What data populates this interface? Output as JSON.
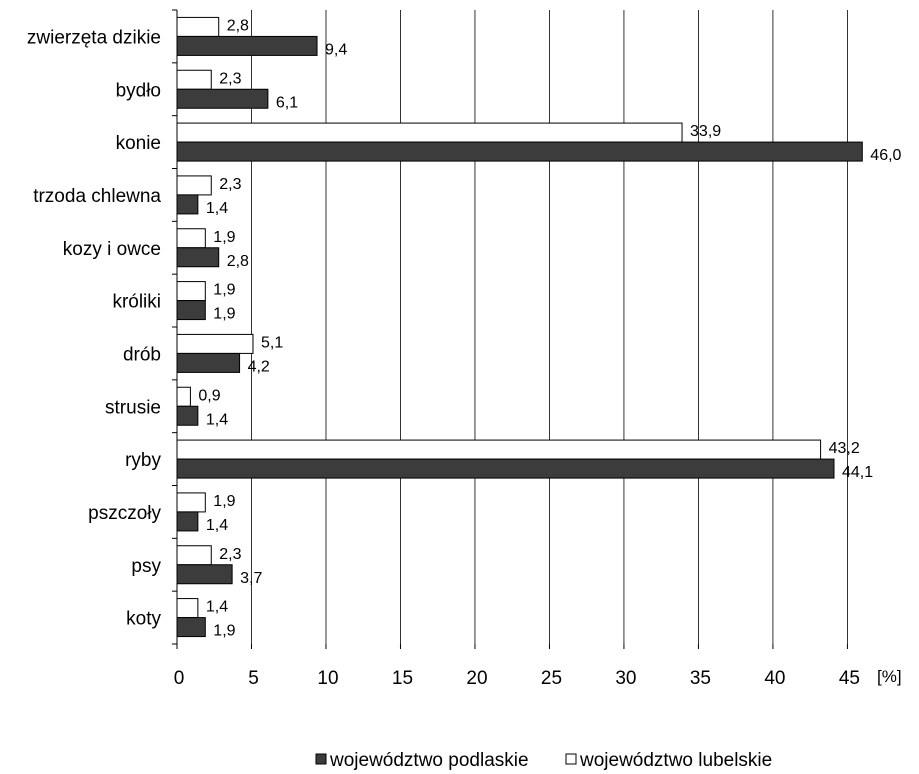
{
  "chart_data": {
    "type": "bar",
    "orientation": "horizontal",
    "categories": [
      "zwierzęta dzikie",
      "bydło",
      "konie",
      "trzoda chlewna",
      "kozy i owce",
      "króliki",
      "drób",
      "strusie",
      "ryby",
      "pszczoły",
      "psy",
      "koty"
    ],
    "series": [
      {
        "name": "województwo lubelskie",
        "color": "#ffffff",
        "values": [
          2.8,
          2.3,
          33.9,
          2.3,
          1.9,
          1.9,
          5.1,
          0.9,
          43.2,
          1.9,
          2.3,
          1.4
        ],
        "labels": [
          "2,8",
          "2,3",
          "33,9",
          "2,3",
          "1,9",
          "1,9",
          "5,1",
          "0,9",
          "43,2",
          "1,9",
          "2,3",
          "1,4"
        ]
      },
      {
        "name": "województwo podlaskie",
        "color": "#3c3c3c",
        "values": [
          9.4,
          6.1,
          46.0,
          1.4,
          2.8,
          1.9,
          4.2,
          1.4,
          44.1,
          1.4,
          3.7,
          1.9
        ],
        "labels": [
          "9,4",
          "6,1",
          "46,0",
          "1,4",
          "2,8",
          "1,9",
          "4,2",
          "1,4",
          "44,1",
          "1,4",
          "3,7",
          "1,9"
        ]
      }
    ],
    "xlim": [
      0,
      49
    ],
    "xticks": [
      0,
      5,
      10,
      15,
      20,
      25,
      30,
      35,
      40,
      45
    ],
    "xunit": "[%]",
    "grid": "vertical",
    "legend": {
      "placement": "bottom",
      "order": [
        "województwo podlaskie",
        "województwo lubelskie"
      ]
    }
  }
}
